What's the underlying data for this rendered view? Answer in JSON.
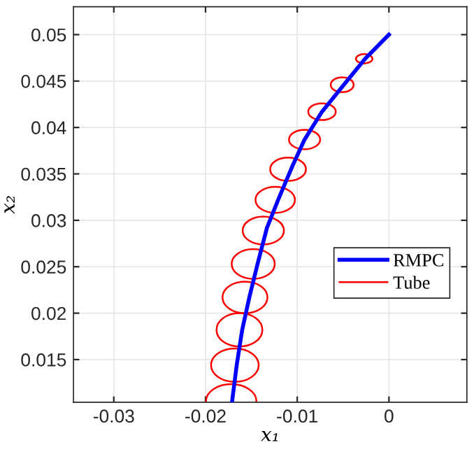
{
  "chart_data": {
    "type": "line",
    "xlabel": "x₁",
    "ylabel": "x₂",
    "xlim": [
      -0.0344,
      0.0085
    ],
    "ylim": [
      0.0104,
      0.053
    ],
    "xticks": [
      -0.03,
      -0.02,
      -0.01,
      0
    ],
    "yticks": [
      0.015,
      0.02,
      0.025,
      0.03,
      0.035,
      0.04,
      0.045,
      0.05
    ],
    "grid": true,
    "legend": "bottom right",
    "series": [
      {
        "name": "RMPC",
        "color": "#0000ff",
        "x": [
          0,
          -0.0026,
          -0.005,
          -0.0073,
          -0.0092,
          -0.0105,
          -0.012,
          -0.0133,
          -0.0143,
          -0.0152,
          -0.016,
          -0.0166,
          -0.0171
        ],
        "values": [
          0.05,
          0.0474,
          0.0445,
          0.0417,
          0.0387,
          0.0359,
          0.0324,
          0.0292,
          0.0254,
          0.0218,
          0.0182,
          0.0144,
          0.0105
        ]
      },
      {
        "name": "Tube",
        "color": "#ff0000"
      }
    ]
  }
}
